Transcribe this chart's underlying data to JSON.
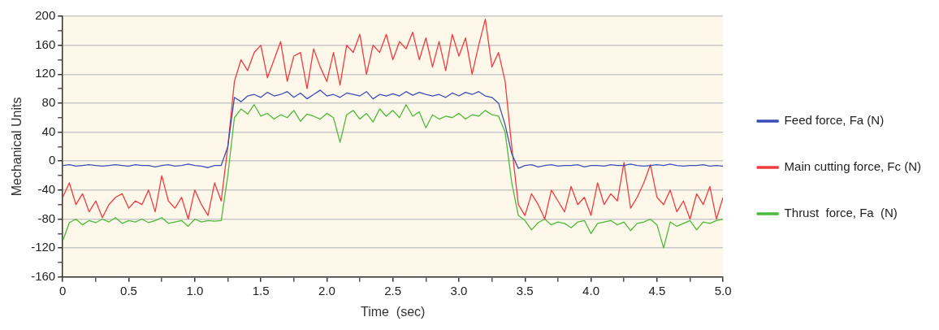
{
  "chart_data": {
    "type": "line",
    "xlabel": "Time  (sec)",
    "ylabel": "Mechanical Units",
    "x": [
      0,
      0.05,
      0.1,
      0.15,
      0.2,
      0.25,
      0.3,
      0.35,
      0.4,
      0.45,
      0.5,
      0.55,
      0.6,
      0.65,
      0.7,
      0.75,
      0.8,
      0.85,
      0.9,
      0.95,
      1.0,
      1.05,
      1.1,
      1.15,
      1.2,
      1.25,
      1.3,
      1.35,
      1.4,
      1.45,
      1.5,
      1.55,
      1.6,
      1.65,
      1.7,
      1.75,
      1.8,
      1.85,
      1.9,
      1.95,
      2.0,
      2.05,
      2.1,
      2.15,
      2.2,
      2.25,
      2.3,
      2.35,
      2.4,
      2.45,
      2.5,
      2.55,
      2.6,
      2.65,
      2.7,
      2.75,
      2.8,
      2.85,
      2.9,
      2.95,
      3.0,
      3.05,
      3.1,
      3.15,
      3.2,
      3.25,
      3.3,
      3.35,
      3.4,
      3.45,
      3.5,
      3.55,
      3.6,
      3.65,
      3.7,
      3.75,
      3.8,
      3.85,
      3.9,
      3.95,
      4.0,
      4.05,
      4.1,
      4.15,
      4.2,
      4.25,
      4.3,
      4.35,
      4.4,
      4.45,
      4.5,
      4.55,
      4.6,
      4.65,
      4.7,
      4.75,
      4.8,
      4.85,
      4.9,
      4.95,
      5.0
    ],
    "series": [
      {
        "name": "Feed force, Fa (N)",
        "color": "#3a4fb8",
        "values": [
          -6,
          -5,
          -7,
          -6,
          -5,
          -6,
          -7,
          -6,
          -5,
          -6,
          -7,
          -5,
          -6,
          -6,
          -8,
          -6,
          -5,
          -7,
          -6,
          -4,
          -6,
          -7,
          -9,
          -6,
          -6,
          20,
          88,
          82,
          90,
          92,
          88,
          95,
          90,
          92,
          96,
          88,
          94,
          86,
          92,
          98,
          90,
          92,
          88,
          94,
          92,
          90,
          96,
          86,
          92,
          90,
          93,
          90,
          96,
          91,
          95,
          92,
          90,
          92,
          88,
          94,
          90,
          95,
          92,
          96,
          90,
          88,
          80,
          50,
          10,
          -10,
          -6,
          -5,
          -8,
          -6,
          -5,
          -7,
          -6,
          -6,
          -5,
          -8,
          -6,
          -6,
          -7,
          -5,
          -6,
          -6,
          -4,
          -6,
          -7,
          -6,
          -5,
          -6,
          -4,
          -6,
          -7,
          -6,
          -6,
          -5,
          -7,
          -6,
          -7
        ]
      },
      {
        "name": "Main cutting force, Fc (N)",
        "color": "#f03c3c",
        "values": [
          -50,
          -30,
          -60,
          -45,
          -70,
          -55,
          -78,
          -60,
          -50,
          -45,
          -65,
          -55,
          -60,
          -40,
          -70,
          -20,
          -55,
          -65,
          -50,
          -80,
          -40,
          -60,
          -75,
          -30,
          -55,
          20,
          110,
          140,
          125,
          150,
          160,
          115,
          140,
          165,
          110,
          145,
          150,
          100,
          155,
          130,
          110,
          150,
          105,
          160,
          150,
          175,
          120,
          160,
          150,
          175,
          140,
          165,
          155,
          178,
          140,
          170,
          130,
          165,
          125,
          175,
          145,
          170,
          120,
          160,
          196,
          130,
          150,
          110,
          20,
          -60,
          -75,
          -45,
          -60,
          -80,
          -40,
          -55,
          -70,
          -35,
          -60,
          -50,
          -75,
          -30,
          -60,
          -45,
          -55,
          -2,
          -65,
          -50,
          -30,
          -5,
          -50,
          -60,
          -40,
          -70,
          -55,
          -80,
          -45,
          -60,
          -35,
          -80,
          -50
        ]
      },
      {
        "name": "Thrust  force, Fa  (N)",
        "color": "#4cbb3c",
        "values": [
          -110,
          -85,
          -80,
          -88,
          -82,
          -85,
          -80,
          -84,
          -78,
          -86,
          -82,
          -84,
          -80,
          -85,
          -82,
          -78,
          -86,
          -84,
          -82,
          -90,
          -80,
          -84,
          -82,
          -83,
          -82,
          -20,
          60,
          72,
          65,
          78,
          62,
          66,
          58,
          64,
          60,
          70,
          55,
          65,
          62,
          58,
          66,
          60,
          26,
          64,
          70,
          58,
          66,
          54,
          72,
          62,
          70,
          60,
          78,
          62,
          68,
          46,
          64,
          58,
          62,
          60,
          66,
          58,
          64,
          62,
          70,
          64,
          62,
          40,
          -30,
          -75,
          -82,
          -95,
          -85,
          -80,
          -88,
          -84,
          -86,
          -92,
          -84,
          -82,
          -100,
          -86,
          -84,
          -82,
          -88,
          -84,
          -96,
          -86,
          -84,
          -80,
          -88,
          -120,
          -84,
          -90,
          -86,
          -82,
          -95,
          -84,
          -86,
          -82,
          -80
        ]
      }
    ],
    "xlim": [
      0,
      5
    ],
    "xticks": [
      0,
      {
        "value": 0.25,
        "label": null
      },
      {
        "value": 0.5,
        "label": "0.5"
      },
      {
        "value": 0.75,
        "label": null
      },
      {
        "value": 1,
        "label": "1.0"
      },
      {
        "value": 1.25,
        "label": null
      },
      {
        "value": 1.5,
        "label": "1.5"
      },
      {
        "value": 1.75,
        "label": null
      },
      {
        "value": 2,
        "label": "2.0"
      },
      {
        "value": 2.25,
        "label": null
      },
      {
        "value": 2.5,
        "label": "2.5"
      },
      {
        "value": 2.75,
        "label": null
      },
      {
        "value": 3,
        "label": "3.0"
      },
      {
        "value": 3.25,
        "label": null
      },
      {
        "value": 3.5,
        "label": "3.5"
      },
      {
        "value": 3.75,
        "label": null
      },
      {
        "value": 4,
        "label": "4.0"
      },
      {
        "value": 4.25,
        "label": null
      },
      {
        "value": 4.5,
        "label": "4.5"
      },
      {
        "value": 4.75,
        "label": null
      },
      {
        "value": 5,
        "label": "5.0"
      }
    ],
    "ylim": [
      -160,
      200
    ],
    "yticks": [
      -160,
      {
        "value": -140,
        "label": null
      },
      -120,
      {
        "value": -100,
        "label": null
      },
      -80,
      {
        "value": -60,
        "label": null
      },
      -40,
      {
        "value": -20,
        "label": null
      },
      0,
      {
        "value": 20,
        "label": null
      },
      40,
      {
        "value": 60,
        "label": null
      },
      80,
      {
        "value": 100,
        "label": null
      },
      120,
      {
        "value": 140,
        "label": null
      },
      160,
      {
        "value": 180,
        "label": null
      },
      200
    ],
    "grid": "y",
    "legend": "right",
    "marker": "none",
    "line_style": "solid"
  }
}
